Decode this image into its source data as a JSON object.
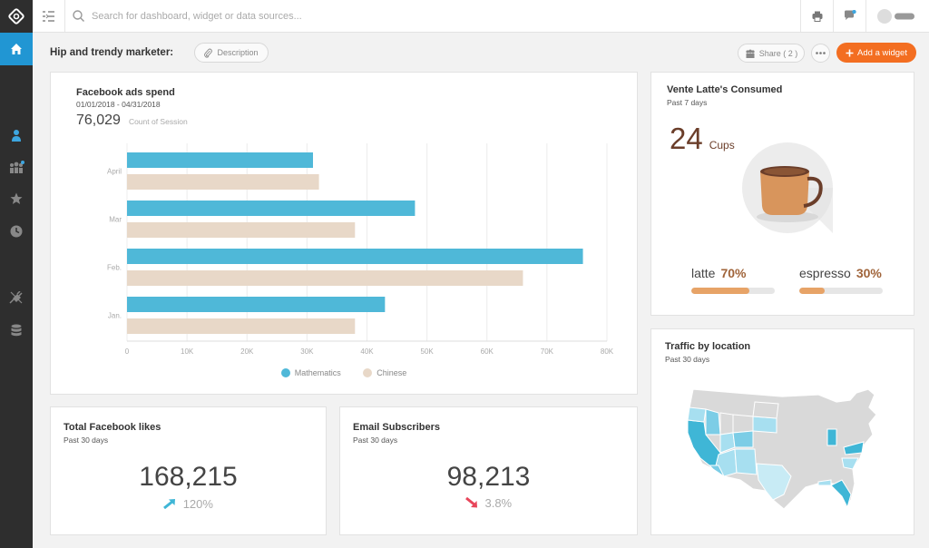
{
  "topbar": {
    "search_placeholder": "Search for dashboard, widget or data sources..."
  },
  "page": {
    "title": "Hip and trendy marketer:",
    "description_label": "Description",
    "share_label": "Share ( 2 )",
    "add_widget_label": "Add a widget"
  },
  "facebook_ads": {
    "title": "Facebook ads spend",
    "date_range": "01/01/2018 - 04/31/2018",
    "value": "76,029",
    "value_label": "Count of Session"
  },
  "chart_data": {
    "type": "bar",
    "orientation": "horizontal",
    "categories": [
      "April",
      "Mar",
      "Feb.",
      "Jan."
    ],
    "series": [
      {
        "name": "Mathematics",
        "values": [
          31000,
          48000,
          76000,
          43000
        ],
        "color": "#4fb8d8"
      },
      {
        "name": "Chinese",
        "values": [
          32000,
          38000,
          66000,
          38000
        ],
        "color": "#e8d8c8"
      }
    ],
    "x_ticks": [
      "0",
      "10K",
      "20K",
      "30K",
      "40K",
      "50K",
      "60K",
      "70K",
      "80K"
    ],
    "xlim": [
      0,
      80000
    ],
    "grid": true,
    "legend": "bottom"
  },
  "latte": {
    "title": "Vente Latte's Consumed",
    "subtitle": "Past 7  days",
    "count": "24",
    "unit": "Cups",
    "items": [
      {
        "label": "latte",
        "percent_label": "70%",
        "fraction": 0.7
      },
      {
        "label": "espresso",
        "percent_label": "30%",
        "fraction": 0.3
      }
    ]
  },
  "traffic": {
    "title": "Traffic by location",
    "subtitle": "Past 30 days"
  },
  "likes": {
    "title": "Total Facebook likes",
    "subtitle": "Past 30 days",
    "value": "168,215",
    "change": "120%",
    "direction": "up",
    "color": "#3fb6d6"
  },
  "subscribers": {
    "title": "Email Subscribers",
    "subtitle": "Past 30 days",
    "value": "98,213",
    "change": "3.8%",
    "direction": "down",
    "color": "#e8455a"
  },
  "icons": {
    "sidebar": [
      "logo-icon",
      "home-icon",
      "user-icon",
      "team-icon",
      "star-icon",
      "clock-icon",
      "plugin-icon",
      "database-icon"
    ],
    "topbar": [
      "collapse-icon",
      "search-icon",
      "printer-icon",
      "chat-icon",
      "avatar"
    ]
  }
}
